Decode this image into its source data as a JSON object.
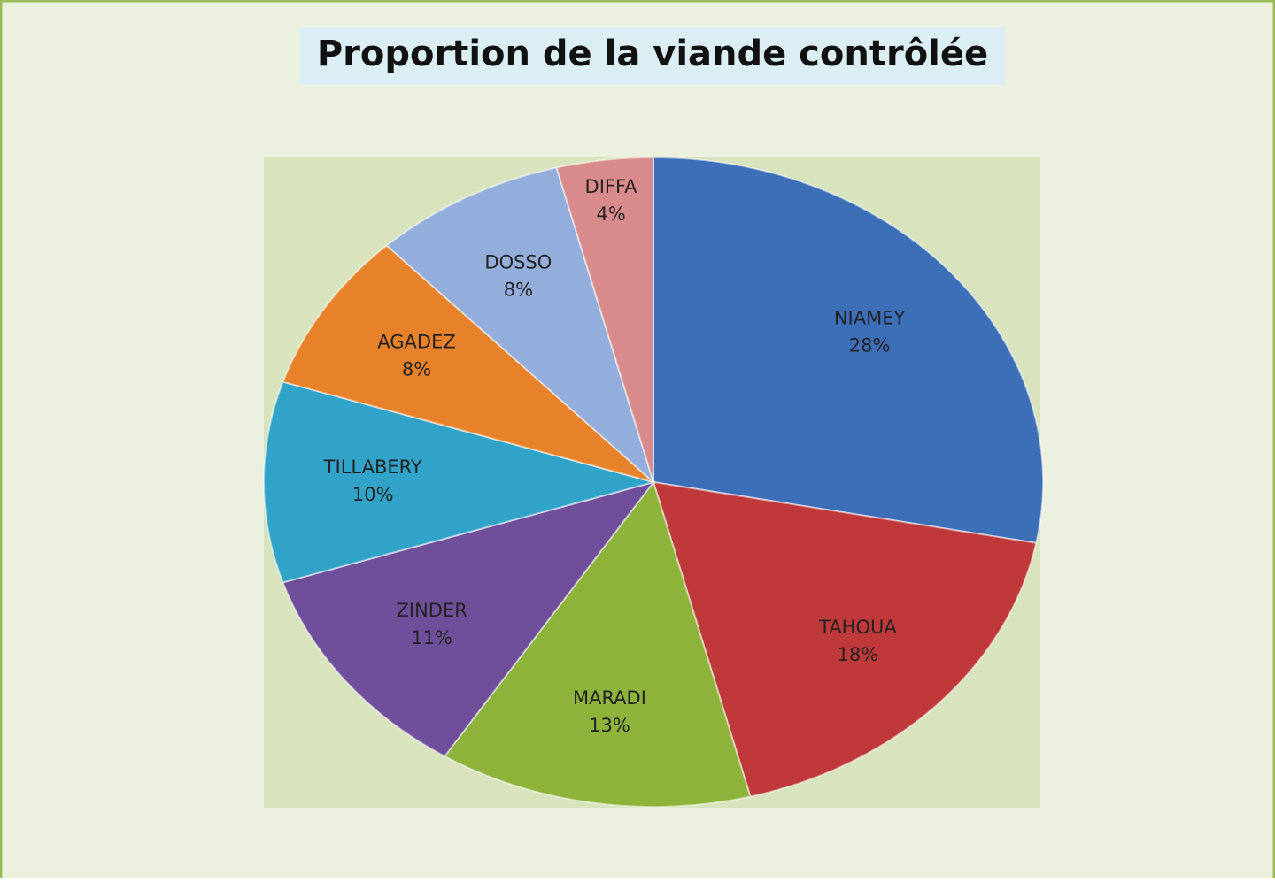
{
  "chart_data": {
    "type": "pie",
    "title": "Proportion de la viande contrôlée",
    "categories": [
      "NIAMEY",
      "TAHOUA",
      "MARADI",
      "ZINDER",
      "TILLABERY",
      "AGADEZ",
      "DOSSO",
      "DIFFA"
    ],
    "values": [
      28,
      18,
      13,
      11,
      10,
      8,
      8,
      4
    ],
    "value_labels": [
      "28%",
      "18%",
      "13%",
      "11%",
      "10%",
      "8%",
      "8%",
      "4%"
    ],
    "colors": [
      "#3c6fb8",
      "#c0393a",
      "#8db33a",
      "#6f4f9a",
      "#31a3c8",
      "#e8822a",
      "#93aedb",
      "#d98a8a"
    ]
  }
}
